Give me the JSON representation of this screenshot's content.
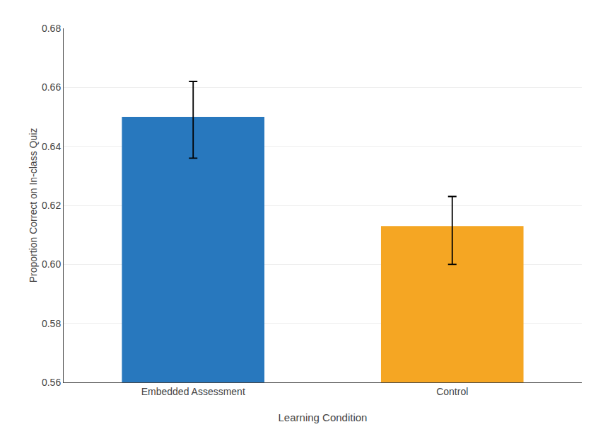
{
  "chart_data": {
    "type": "bar",
    "categories": [
      "Embedded Assessment",
      "Control"
    ],
    "values": [
      0.65,
      0.613
    ],
    "errors_upper": [
      0.012,
      0.01
    ],
    "errors_lower": [
      0.014,
      0.013
    ],
    "colors": [
      "#2878BE",
      "#F5A623"
    ],
    "xlabel": "Learning Condition",
    "ylabel": "Proportion Correct on In-class Quiz",
    "ylim": [
      0.56,
      0.68
    ],
    "yticks": [
      0.56,
      0.58,
      {
        "value": 0.6,
        "label": "0.60"
      },
      0.62,
      0.64,
      0.66,
      0.68
    ],
    "grid": true
  }
}
